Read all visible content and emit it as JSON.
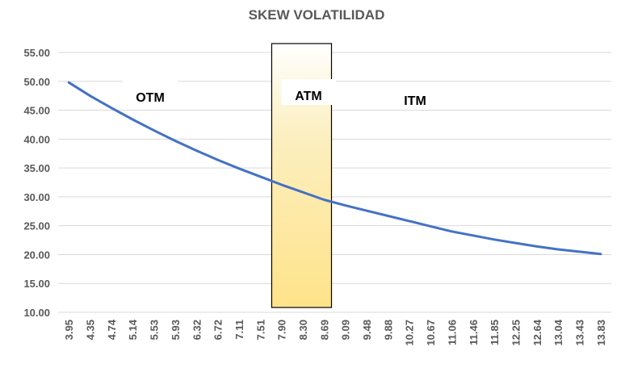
{
  "chart_data": {
    "type": "line",
    "title": "SKEW VOLATILIDAD",
    "xlabel": "",
    "ylabel": "",
    "x": [
      "3.95",
      "4.35",
      "4.74",
      "5.14",
      "5.53",
      "5.93",
      "6.32",
      "6.72",
      "7.11",
      "7.51",
      "7.90",
      "8.30",
      "8.69",
      "9.09",
      "9.48",
      "9.88",
      "10.27",
      "10.67",
      "11.06",
      "11.46",
      "11.85",
      "12.25",
      "12.64",
      "13.04",
      "13.43",
      "13.83"
    ],
    "series": [
      {
        "values": [
          49.8,
          47.5,
          45.4,
          43.4,
          41.5,
          39.7,
          38.0,
          36.4,
          34.9,
          33.5,
          32.1,
          30.8,
          29.5,
          28.5,
          27.6,
          26.7,
          25.8,
          24.9,
          24.0,
          23.3,
          22.6,
          22.0,
          21.4,
          20.9,
          20.5,
          20.1
        ]
      }
    ],
    "ylim": [
      10,
      55
    ],
    "yticks": [
      "10.00",
      "15.00",
      "20.00",
      "25.00",
      "30.00",
      "35.00",
      "40.00",
      "45.00",
      "50.00",
      "55.00"
    ],
    "grid": true,
    "line_color": "#4472C4",
    "regions": [
      {
        "label": "OTM"
      },
      {
        "label": "ATM",
        "from": "7.90",
        "to": "8.69",
        "fill_top": "#ffffff",
        "fill_bottom": "#FFE38A"
      },
      {
        "label": "ITM"
      }
    ]
  }
}
